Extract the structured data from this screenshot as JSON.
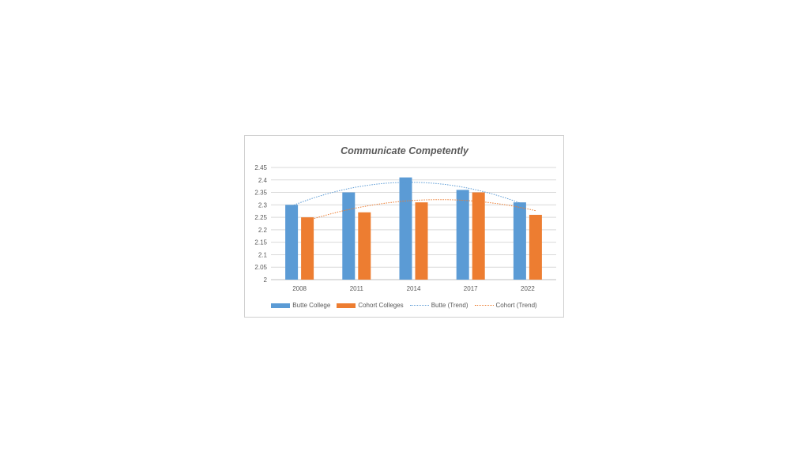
{
  "chart_data": {
    "type": "bar",
    "title": "Communicate Competently",
    "categories": [
      "2008",
      "2011",
      "2014",
      "2017",
      "2022"
    ],
    "series": [
      {
        "name": "Butte College",
        "values": [
          2.3,
          2.35,
          2.41,
          2.36,
          2.31
        ],
        "color": "#5b9bd5"
      },
      {
        "name": "Cohort Colleges",
        "values": [
          2.25,
          2.27,
          2.31,
          2.35,
          2.26
        ],
        "color": "#ed7d31"
      }
    ],
    "trendlines": [
      {
        "name": "Butte (Trend)",
        "of": "Butte College",
        "color": "#5b9bd5",
        "style": "dotted",
        "order": 2
      },
      {
        "name": "Cohort (Trend)",
        "of": "Cohort Colleges",
        "color": "#ed7d31",
        "style": "dotted",
        "order": 2
      }
    ],
    "ylim": [
      2,
      2.45
    ],
    "yticks": [
      "2",
      "2.05",
      "2.1",
      "2.15",
      "2.2",
      "2.25",
      "2.3",
      "2.35",
      "2.4",
      "2.45"
    ],
    "grid": true,
    "legend_position": "bottom",
    "xlabel": "",
    "ylabel": ""
  }
}
